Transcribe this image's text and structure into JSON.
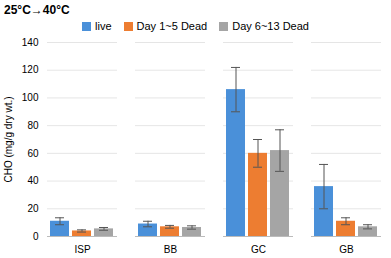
{
  "chart_data": {
    "type": "bar",
    "title": "25°C→40°C",
    "categories": [
      "ISP",
      "BB",
      "GC",
      "GB"
    ],
    "y_label": "CHO (mg/g dry wt.)",
    "series": [
      {
        "name": "live",
        "color": "#4a90d9",
        "values": [
          11,
          9,
          106,
          36
        ],
        "errors": [
          2.5,
          2,
          16,
          16
        ]
      },
      {
        "name": "Day 1~5 Dead",
        "color": "#ed7d31",
        "values": [
          4,
          7,
          60,
          11
        ],
        "errors": [
          0.8,
          1,
          10,
          2.5
        ]
      },
      {
        "name": "Day 6~13 Dead",
        "color": "#a5a5a5",
        "values": [
          5.5,
          6.5,
          62,
          7
        ],
        "errors": [
          1,
          1.2,
          15,
          1.5
        ]
      }
    ],
    "ylim": [
      0,
      140
    ],
    "yticks": [
      0,
      20,
      40,
      60,
      80,
      100,
      120,
      140
    ],
    "grid": true,
    "legend": "top"
  }
}
